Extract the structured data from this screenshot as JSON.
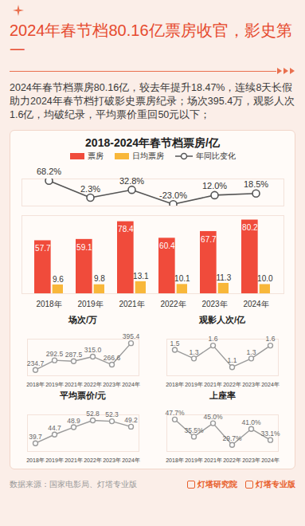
{
  "title": "2024年春节档80.16亿票房收官，影史第一",
  "text": "2024年春节档票房80.16亿，较去年提升18.47%，连续8天长假助力2024年春节档打破影史票房纪录；场次395.4万，观影人次1.6亿，均破纪录，平均票价重回50元以下；",
  "source": "数据来源：国家电影局、灯塔专业版",
  "brands": [
    "灯塔研究院",
    "灯塔专业版"
  ],
  "chart_data": [
    {
      "type": "bar",
      "title": "2018-2024年春节档票房/亿",
      "categories": [
        "2018年",
        "2019年",
        "2021年",
        "2022年",
        "2023年",
        "2024年"
      ],
      "series": [
        {
          "name": "票房",
          "type": "bar",
          "color": "#f04b3b",
          "values": [
            57.7,
            59.1,
            78.4,
            60.4,
            67.7,
            80.2
          ]
        },
        {
          "name": "日均票房",
          "type": "bar",
          "color": "#f8b73a",
          "values": [
            9.6,
            9.8,
            13.1,
            10.1,
            11.3,
            10.0
          ],
          "value_labels": [
            "9.6",
            "9.8",
            "13.1",
            "10.1",
            "11.3",
            "10.0"
          ]
        },
        {
          "name": "年同比变化",
          "type": "line",
          "axis": "y2",
          "color": "#555555",
          "marker": "circle",
          "values": [
            68.2,
            2.3,
            32.8,
            -23.0,
            12.0,
            18.5
          ],
          "value_labels": [
            "68.2%",
            "2.3%",
            "32.8%",
            "-23.0%",
            "12.0%",
            "18.5%"
          ]
        }
      ],
      "ylim": [
        0,
        85
      ],
      "y2lim": [
        -30,
        75
      ],
      "data_labels": true,
      "tick_labels": "x",
      "legend": "top"
    },
    {
      "type": "line",
      "title": "场次/万",
      "categories": [
        "2018年",
        "2019年",
        "2021年",
        "2022年",
        "2023年",
        "2024年"
      ],
      "values": [
        234.7,
        292.5,
        287.5,
        315.0,
        266.6,
        395.4
      ],
      "value_labels": [
        "234.7",
        "292.5",
        "287.5",
        "315.0",
        "266.6",
        "395.4"
      ],
      "color": "#9a9a9a",
      "marker": "circle",
      "ylim": [
        200,
        420
      ],
      "data_labels": true,
      "tick_labels": "x"
    },
    {
      "type": "line",
      "title": "观影人次/亿",
      "categories": [
        "2018年",
        "2019年",
        "2021年",
        "2022年",
        "2023年",
        "2024年"
      ],
      "values": [
        1.5,
        1.3,
        1.6,
        1.1,
        1.3,
        1.6
      ],
      "color": "#9a9a9a",
      "marker": "circle",
      "ylim": [
        0.9,
        1.75
      ],
      "data_labels": true,
      "tick_labels": "x"
    },
    {
      "type": "line",
      "title": "平均票价/元",
      "categories": [
        "2018年",
        "2019年",
        "2021年",
        "2022年",
        "2023年",
        "2024年"
      ],
      "values": [
        39.7,
        44.7,
        48.9,
        52.8,
        52.3,
        49.2
      ],
      "color": "#9a9a9a",
      "marker": "circle",
      "ylim": [
        35,
        56
      ],
      "data_labels": true,
      "tick_labels": "x"
    },
    {
      "type": "line",
      "title": "上座率",
      "categories": [
        "2018年",
        "2019年",
        "2021年",
        "2022年",
        "2023年",
        "2024年"
      ],
      "values": [
        47.7,
        35.5,
        45.0,
        29.7,
        41.0,
        33.1
      ],
      "value_labels": [
        "47.7%",
        "35.5%",
        "45.0%",
        "29.7%",
        "41.0%",
        "33.1%"
      ],
      "color": "#9a9a9a",
      "marker": "circle",
      "ylim": [
        25,
        51
      ],
      "data_labels": true,
      "tick_labels": "x"
    }
  ]
}
